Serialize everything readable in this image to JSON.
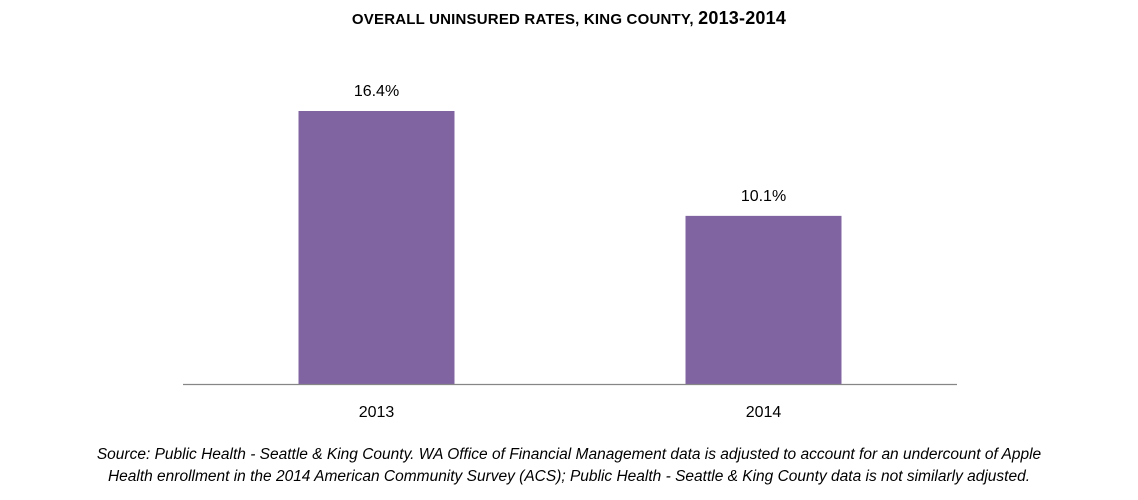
{
  "chart_data": {
    "type": "bar",
    "title": "OVERALL UNINSURED RATES, KING COUNTY,",
    "title_years": "2013-2014",
    "categories": [
      "2013",
      "2014"
    ],
    "values": [
      16.4,
      10.1
    ],
    "data_labels": [
      "16.4%",
      "10.1%"
    ],
    "unit": "%",
    "ylim": [
      0,
      18
    ],
    "grid": false,
    "legend": "none",
    "bar_color": "#8064A2",
    "axis_color": "#868686"
  },
  "footnote": {
    "line1": "Source: Public Health - Seattle & King County. WA Office of Financial Management data is adjusted to account for an undercount of Apple",
    "line2": "Health enrollment in the 2014 American Community Survey (ACS); Public Health - Seattle & King County data is not similarly adjusted."
  }
}
